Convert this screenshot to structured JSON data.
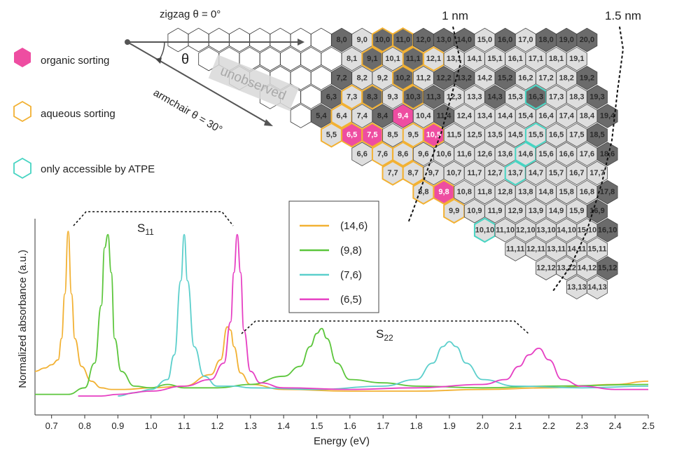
{
  "legend_top": {
    "organic": "organic sorting",
    "aqueous": "aqueous sorting",
    "atpe": "only accessible by ATPE"
  },
  "map_labels": {
    "zigzag": "zigzag θ = 0°",
    "armchair": "armchair θ = 30°",
    "theta": "θ",
    "unobserved": "unobserved",
    "d1": "1 nm",
    "d15": "1.5 nm"
  },
  "colors": {
    "organic": "#ee4da1",
    "aqueous": "#f2b133",
    "atpe": "#46d4c2",
    "dark_hex": "#6b6b6b",
    "light_hex": "#dedede"
  },
  "chirality_map": {
    "light_cells": [
      "8,1",
      "10,1",
      "8,2",
      "9,2",
      "11,2",
      "7,3",
      "9,3",
      "13,3",
      "14,5",
      "6,4",
      "12,4",
      "13,4",
      "14,4",
      "15,4",
      "16,4",
      "5,5",
      "6,5",
      "7,5",
      "8,5",
      "11,5",
      "12,5",
      "13,5",
      "14,5",
      "15,5",
      "16,5",
      "17,5",
      "6,6",
      "7,6",
      "10,6",
      "11,6",
      "12,6",
      "13,6",
      "14,6",
      "15,6",
      "16,6",
      "17,6",
      "7,7",
      "8,7",
      "9,7",
      "10,7",
      "11,7",
      "12,7",
      "13,7",
      "14,7",
      "15,7",
      "16,7",
      "17,7",
      "8,8",
      "9,8",
      "10,8",
      "11,8",
      "12,8",
      "13,8",
      "14,8",
      "15,8",
      "16,8",
      "9,9",
      "10,9",
      "11,9",
      "12,9",
      "13,9",
      "14,9",
      "15,9",
      "10,10",
      "11,10",
      "12,10",
      "13,10",
      "14,10",
      "15,10",
      "11,11",
      "12,11",
      "13,11",
      "14,11",
      "15,11",
      "12,12",
      "13,12",
      "14,12",
      "13,13",
      "14,13",
      "9,0",
      "15,0",
      "17,0",
      "10,1",
      "12,1",
      "13,1",
      "14,1",
      "15,1",
      "16,1",
      "17,1",
      "18,1",
      "19,1",
      "11,2",
      "14,2",
      "16,2",
      "17,2",
      "18,2",
      "12,3",
      "15,3",
      "17,3",
      "18,3",
      "12,4",
      "17,4",
      "18,4",
      "9,4",
      "10,4",
      "9,5",
      "9,6",
      "8,6",
      "7,4",
      "6,6",
      "13,5"
    ],
    "organic": [
      "9,4",
      "6,5",
      "7,5",
      "10,5",
      "9,8"
    ],
    "aqueous": [
      "10,0",
      "11,0",
      "9,1",
      "11,1",
      "12,1",
      "10,2",
      "7,3",
      "8,3",
      "10,3",
      "6,4",
      "5,5",
      "6,5",
      "7,5",
      "10,5",
      "7,6",
      "8,6",
      "8,7",
      "7,7",
      "8,8",
      "9,8",
      "9,9",
      "9,5",
      "10,5"
    ],
    "atpe": [
      "16,3",
      "15,5",
      "14,6",
      "13,7",
      "10,10"
    ]
  },
  "chart_data": {
    "type": "line",
    "title": "",
    "xlabel": "Energy (eV)",
    "ylabel": "Normalized absorbance (a.u.)",
    "xlim": [
      0.65,
      2.5
    ],
    "xticks": [
      "0.7",
      "0.8",
      "0.9",
      "1.0",
      "1.1",
      "1.2",
      "1.3",
      "1.4",
      "1.5",
      "1.6",
      "1.7",
      "1.8",
      "1.9",
      "2.0",
      "2.1",
      "2.2",
      "2.3",
      "2.4",
      "2.5"
    ],
    "s11_label": "S",
    "s11_sub": "11",
    "s22_label": "S",
    "s22_sub": "22",
    "series": [
      {
        "name": "(14,6)",
        "color": "#f2b133",
        "x": [
          0.65,
          0.68,
          0.7,
          0.72,
          0.73,
          0.74,
          0.75,
          0.76,
          0.77,
          0.79,
          0.82,
          0.85,
          0.88,
          0.92,
          1.0,
          1.1,
          1.18,
          1.21,
          1.23,
          1.24,
          1.25,
          1.27,
          1.3,
          1.4,
          1.6,
          1.8,
          2.0,
          2.2,
          2.4,
          2.5
        ],
        "y": [
          0.15,
          0.17,
          0.19,
          0.22,
          0.35,
          0.62,
          1.0,
          0.62,
          0.35,
          0.18,
          0.09,
          0.05,
          0.04,
          0.04,
          0.05,
          0.06,
          0.13,
          0.22,
          0.42,
          0.4,
          0.3,
          0.14,
          0.07,
          0.04,
          0.03,
          0.03,
          0.04,
          0.05,
          0.07,
          0.09
        ]
      },
      {
        "name": "(9,8)",
        "color": "#5cc63c",
        "x": [
          0.65,
          0.75,
          0.8,
          0.83,
          0.85,
          0.86,
          0.87,
          0.88,
          0.89,
          0.91,
          0.95,
          1.0,
          1.05,
          1.1,
          1.2,
          1.3,
          1.4,
          1.45,
          1.48,
          1.5,
          1.515,
          1.53,
          1.56,
          1.6,
          1.7,
          1.8,
          2.0,
          2.2,
          2.5
        ],
        "y": [
          0.01,
          0.01,
          0.05,
          0.2,
          0.55,
          0.9,
          0.98,
          0.75,
          0.35,
          0.15,
          0.06,
          0.05,
          0.07,
          0.05,
          0.05,
          0.07,
          0.12,
          0.18,
          0.3,
          0.38,
          0.41,
          0.35,
          0.2,
          0.1,
          0.08,
          0.06,
          0.05,
          0.06,
          0.07
        ]
      },
      {
        "name": "(7,6)",
        "color": "#5ccfcc",
        "x": [
          0.9,
          0.95,
          1.0,
          1.05,
          1.07,
          1.09,
          1.1,
          1.11,
          1.13,
          1.16,
          1.2,
          1.25,
          1.3,
          1.5,
          1.7,
          1.8,
          1.85,
          1.88,
          1.9,
          1.92,
          1.95,
          2.0,
          2.1,
          2.3,
          2.5
        ],
        "y": [
          0.0,
          0.02,
          0.04,
          0.1,
          0.25,
          0.7,
          0.98,
          0.7,
          0.3,
          0.12,
          0.06,
          0.06,
          0.05,
          0.04,
          0.06,
          0.1,
          0.2,
          0.3,
          0.33,
          0.3,
          0.2,
          0.1,
          0.06,
          0.05,
          0.06
        ]
      },
      {
        "name": "(6,5)",
        "color": "#e63fc3",
        "x": [
          0.78,
          0.85,
          0.9,
          1.0,
          1.1,
          1.18,
          1.22,
          1.24,
          1.25,
          1.26,
          1.27,
          1.28,
          1.3,
          1.33,
          1.4,
          1.6,
          1.8,
          2.0,
          2.07,
          2.11,
          2.14,
          2.17,
          2.2,
          2.24,
          2.3,
          2.4,
          2.5
        ],
        "y": [
          0.0,
          0.0,
          0.01,
          0.03,
          0.06,
          0.1,
          0.2,
          0.45,
          0.75,
          0.98,
          0.75,
          0.4,
          0.15,
          0.08,
          0.05,
          0.04,
          0.05,
          0.07,
          0.1,
          0.18,
          0.25,
          0.29,
          0.22,
          0.1,
          0.06,
          0.04,
          0.04
        ]
      }
    ]
  }
}
